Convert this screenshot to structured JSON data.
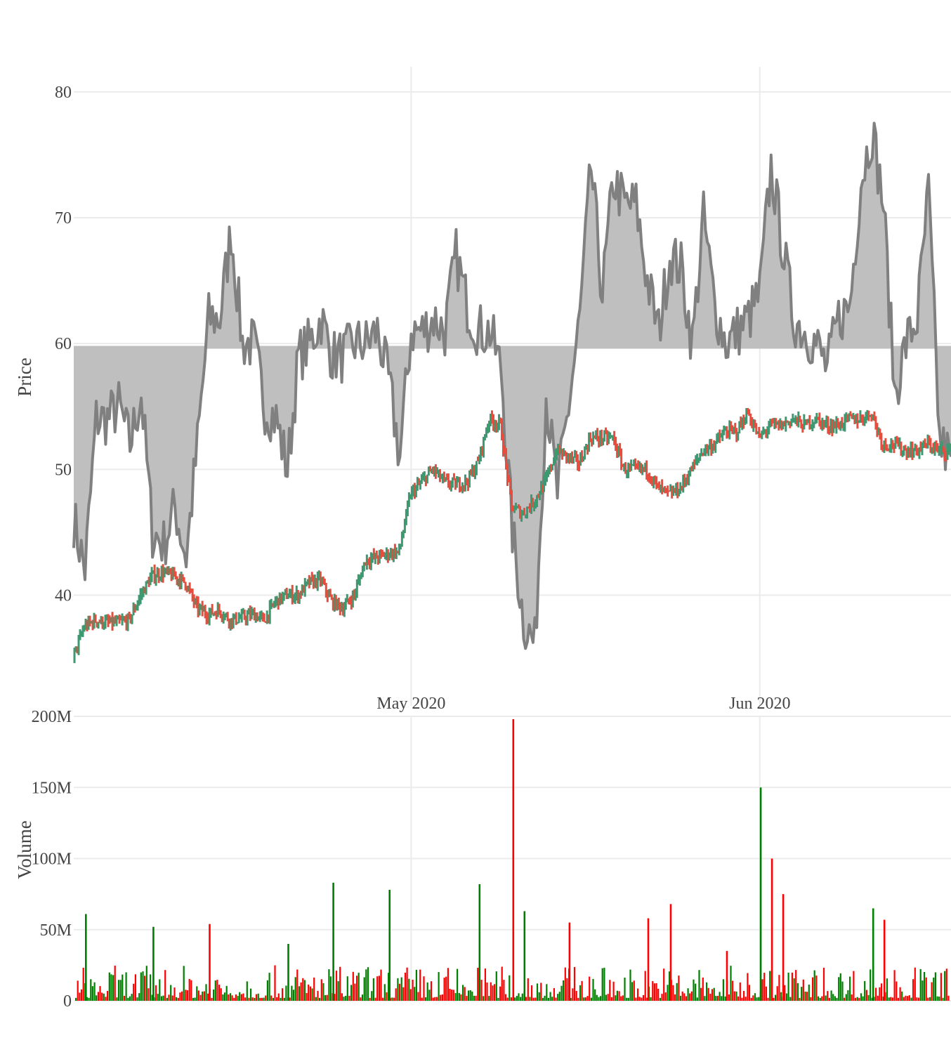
{
  "chart_data": [
    {
      "type": "line",
      "panel": "price",
      "ylabel": "Price",
      "ylim": [
        34,
        82
      ],
      "y_ticks": [
        "40",
        "50",
        "60",
        "70",
        "80"
      ],
      "y_tick_values": [
        40,
        50,
        60,
        70,
        80
      ],
      "x_tick_labels": [
        "May 2020",
        "Jun 2020"
      ],
      "x_tick_dates": [
        "2020-05-01",
        "2020-06-01"
      ],
      "x_range": [
        "2020-04-01",
        "2020-06-18"
      ],
      "grid": true,
      "legend": "none",
      "series": [
        {
          "style": "line",
          "color": "#808080",
          "fill_color": "#bfbfbf",
          "fill_reference": 59.7,
          "x": [
            "2020-04-01",
            "2020-04-02",
            "2020-04-03",
            "2020-04-04",
            "2020-04-05",
            "2020-04-06",
            "2020-04-07",
            "2020-04-08",
            "2020-04-09",
            "2020-04-10",
            "2020-04-11",
            "2020-04-12",
            "2020-04-13",
            "2020-04-14",
            "2020-04-15",
            "2020-04-16",
            "2020-04-17",
            "2020-04-18",
            "2020-04-19",
            "2020-04-20",
            "2020-04-21",
            "2020-04-22",
            "2020-04-23",
            "2020-04-24",
            "2020-04-25",
            "2020-04-26",
            "2020-04-27",
            "2020-04-28",
            "2020-04-29",
            "2020-04-30",
            "2020-05-01",
            "2020-05-02",
            "2020-05-03",
            "2020-05-04",
            "2020-05-05",
            "2020-05-06",
            "2020-05-07",
            "2020-05-08",
            "2020-05-09",
            "2020-05-10",
            "2020-05-11",
            "2020-05-12",
            "2020-05-13",
            "2020-05-14",
            "2020-05-15",
            "2020-05-16",
            "2020-05-17",
            "2020-05-18",
            "2020-05-19",
            "2020-05-20",
            "2020-05-21",
            "2020-05-22",
            "2020-05-23",
            "2020-05-24",
            "2020-05-25",
            "2020-05-26",
            "2020-05-27",
            "2020-05-28",
            "2020-05-29",
            "2020-05-30",
            "2020-05-31",
            "2020-06-01",
            "2020-06-02",
            "2020-06-03",
            "2020-06-04",
            "2020-06-05",
            "2020-06-06",
            "2020-06-07",
            "2020-06-08",
            "2020-06-09",
            "2020-06-10",
            "2020-06-11",
            "2020-06-12",
            "2020-06-13",
            "2020-06-14",
            "2020-06-15",
            "2020-06-16",
            "2020-06-17",
            "2020-06-18"
          ],
          "values": [
            46,
            42,
            54,
            54,
            55,
            52,
            56,
            45,
            44,
            47,
            43,
            52,
            62,
            62,
            69,
            60,
            60,
            55,
            54,
            50,
            59,
            60,
            62,
            59,
            59,
            60,
            60,
            61,
            57,
            51,
            61,
            61,
            62,
            61,
            67,
            63,
            61,
            61,
            58,
            45,
            38,
            36,
            56,
            48,
            55,
            62,
            74,
            64,
            73,
            71,
            71,
            65,
            61,
            67,
            66,
            60,
            70,
            63,
            60,
            61,
            62,
            64,
            74,
            68,
            62,
            61,
            60,
            58,
            62,
            63,
            73,
            77,
            71,
            56,
            60,
            62,
            72,
            52,
            51
          ]
        },
        {
          "style": "candlestick",
          "up_color": "#3d9970",
          "down_color": "#e74c3c",
          "x": [
            "2020-04-01",
            "2020-04-02",
            "2020-04-03",
            "2020-04-04",
            "2020-04-05",
            "2020-04-06",
            "2020-04-07",
            "2020-04-08",
            "2020-04-09",
            "2020-04-10",
            "2020-04-11",
            "2020-04-12",
            "2020-04-13",
            "2020-04-14",
            "2020-04-15",
            "2020-04-16",
            "2020-04-17",
            "2020-04-18",
            "2020-04-19",
            "2020-04-20",
            "2020-04-21",
            "2020-04-22",
            "2020-04-23",
            "2020-04-24",
            "2020-04-25",
            "2020-04-26",
            "2020-04-27",
            "2020-04-28",
            "2020-04-29",
            "2020-04-30",
            "2020-05-01",
            "2020-05-02",
            "2020-05-03",
            "2020-05-04",
            "2020-05-05",
            "2020-05-06",
            "2020-05-07",
            "2020-05-08",
            "2020-05-09",
            "2020-05-10",
            "2020-05-11",
            "2020-05-12",
            "2020-05-13",
            "2020-05-14",
            "2020-05-15",
            "2020-05-16",
            "2020-05-17",
            "2020-05-18",
            "2020-05-19",
            "2020-05-20",
            "2020-05-21",
            "2020-05-22",
            "2020-05-23",
            "2020-05-24",
            "2020-05-25",
            "2020-05-26",
            "2020-05-27",
            "2020-05-28",
            "2020-05-29",
            "2020-05-30",
            "2020-05-31",
            "2020-06-01",
            "2020-06-02",
            "2020-06-03",
            "2020-06-04",
            "2020-06-05",
            "2020-06-06",
            "2020-06-07",
            "2020-06-08",
            "2020-06-09",
            "2020-06-10",
            "2020-06-11",
            "2020-06-12",
            "2020-06-13",
            "2020-06-14",
            "2020-06-15",
            "2020-06-16",
            "2020-06-17",
            "2020-06-18"
          ],
          "close": [
            35,
            37.5,
            38,
            37.8,
            37.8,
            38,
            40,
            41.5,
            41.8,
            41.5,
            41,
            39,
            38.5,
            38.8,
            38,
            38.2,
            38.5,
            38,
            39.5,
            40,
            40,
            41,
            41.2,
            39.5,
            39,
            40,
            42.8,
            43,
            43.3,
            43.5,
            48,
            49,
            50,
            49,
            48.8,
            49,
            50.5,
            54,
            53.5,
            47,
            46.5,
            47.5,
            49,
            51.5,
            51,
            50.5,
            52.5,
            52.5,
            52.5,
            50,
            50,
            50,
            48.5,
            48,
            48.5,
            50,
            51.5,
            52,
            53,
            53,
            54.5,
            52.5,
            53.5,
            53.5,
            54,
            53.5,
            54,
            53.5,
            53.5,
            54,
            54,
            54.5,
            52,
            52,
            51.5,
            51.5,
            52,
            51.5,
            51.5
          ]
        }
      ]
    },
    {
      "type": "bar",
      "panel": "volume",
      "ylabel": "Volume",
      "ylim": [
        0,
        200000000
      ],
      "y_ticks": [
        "0",
        "50M",
        "100M",
        "150M",
        "200M"
      ],
      "y_tick_values": [
        0,
        50000000,
        100000000,
        150000000,
        200000000
      ],
      "grid": true,
      "legend": "none",
      "up_color": "#008000",
      "down_color": "#ff0000",
      "highlighted_bars": [
        {
          "date": "2020-04-02",
          "value": 61000000,
          "color": "green"
        },
        {
          "date": "2020-04-08",
          "value": 52000000,
          "color": "green"
        },
        {
          "date": "2020-04-13",
          "value": 54000000,
          "color": "red"
        },
        {
          "date": "2020-04-20",
          "value": 40000000,
          "color": "green"
        },
        {
          "date": "2020-04-24",
          "value": 83000000,
          "color": "green"
        },
        {
          "date": "2020-04-29",
          "value": 78000000,
          "color": "green"
        },
        {
          "date": "2020-05-07",
          "value": 82000000,
          "color": "green"
        },
        {
          "date": "2020-05-10",
          "value": 198000000,
          "color": "red"
        },
        {
          "date": "2020-05-11",
          "value": 63000000,
          "color": "green"
        },
        {
          "date": "2020-05-15",
          "value": 55000000,
          "color": "red"
        },
        {
          "date": "2020-05-22",
          "value": 58000000,
          "color": "red"
        },
        {
          "date": "2020-05-24",
          "value": 68000000,
          "color": "red"
        },
        {
          "date": "2020-05-29",
          "value": 35000000,
          "color": "red"
        },
        {
          "date": "2020-06-01",
          "value": 150000000,
          "color": "green"
        },
        {
          "date": "2020-06-02",
          "value": 100000000,
          "color": "red"
        },
        {
          "date": "2020-06-03",
          "value": 75000000,
          "color": "red"
        },
        {
          "date": "2020-06-11",
          "value": 65000000,
          "color": "green"
        },
        {
          "date": "2020-06-12",
          "value": 57000000,
          "color": "red"
        }
      ],
      "typical_range": [
        2000000,
        25000000
      ]
    }
  ]
}
